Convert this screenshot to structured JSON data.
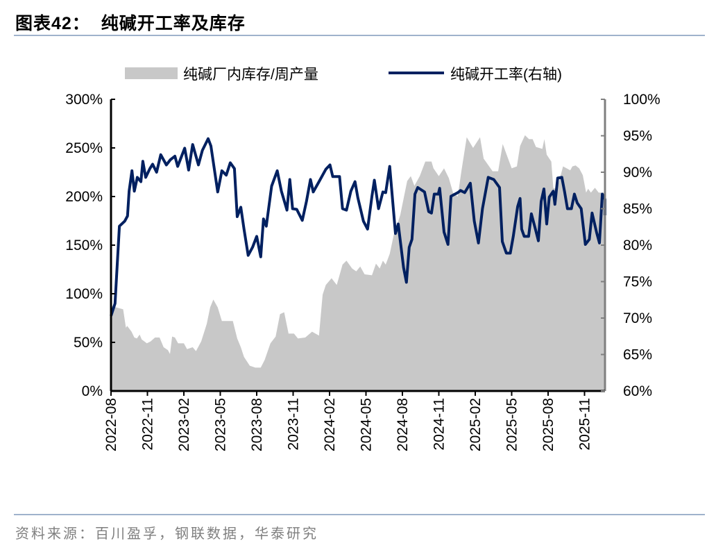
{
  "title": "图表42：  纯碱开工率及库存",
  "source": "资料来源：百川盈孚，钢联数据，华泰研究",
  "colors": {
    "inventory_fill": "#c8c8c8",
    "rate_line": "#002060",
    "rule": "#9fb2cc",
    "right_axis": "#7f7f7f"
  },
  "chart_data": {
    "type": "area+line",
    "title": "纯碱开工率及库存",
    "legend_position": "top",
    "grid": false,
    "x_ticks": [
      "2022-08",
      "2022-11",
      "2023-02",
      "2023-05",
      "2023-08",
      "2023-11",
      "2024-02",
      "2024-05",
      "2024-08",
      "2024-11",
      "2025-02",
      "2025-05",
      "2025-08",
      "2025-11"
    ],
    "y_left": {
      "ticks": [
        "0%",
        "50%",
        "100%",
        "150%",
        "200%",
        "250%",
        "300%"
      ],
      "range": [
        0,
        300
      ],
      "unit": "%"
    },
    "y_right": {
      "ticks": [
        "60%",
        "65%",
        "70%",
        "75%",
        "80%",
        "85%",
        "90%",
        "95%",
        "100%"
      ],
      "range": [
        60,
        100
      ],
      "unit": "%"
    },
    "series": [
      {
        "name": "纯碱厂内库存/周产量",
        "type": "area",
        "axis": "left",
        "points": [
          [
            "2022-08-01",
            88
          ],
          [
            "2022-08-14",
            86
          ],
          [
            "2022-09-01",
            84
          ],
          [
            "2022-09-08",
            65
          ],
          [
            "2022-09-11",
            67
          ],
          [
            "2022-09-22",
            61
          ],
          [
            "2022-09-29",
            55
          ],
          [
            "2022-10-05",
            54
          ],
          [
            "2022-10-12",
            58
          ],
          [
            "2022-10-17",
            53
          ],
          [
            "2022-10-30",
            49
          ],
          [
            "2022-11-09",
            51
          ],
          [
            "2022-11-20",
            55
          ],
          [
            "2022-12-01",
            55
          ],
          [
            "2022-12-11",
            45
          ],
          [
            "2022-12-22",
            42
          ],
          [
            "2022-12-27",
            38
          ],
          [
            "2023-01-02",
            56
          ],
          [
            "2023-01-09",
            55
          ],
          [
            "2023-01-17",
            49
          ],
          [
            "2023-02-01",
            49
          ],
          [
            "2023-02-09",
            43
          ],
          [
            "2023-02-23",
            45
          ],
          [
            "2023-03-01",
            41
          ],
          [
            "2023-03-14",
            51
          ],
          [
            "2023-03-28",
            69
          ],
          [
            "2023-04-06",
            86
          ],
          [
            "2023-04-14",
            94
          ],
          [
            "2023-04-25",
            86
          ],
          [
            "2023-05-05",
            72
          ],
          [
            "2023-06-02",
            72
          ],
          [
            "2023-06-13",
            54
          ],
          [
            "2023-06-22",
            45
          ],
          [
            "2023-06-30",
            35
          ],
          [
            "2023-07-14",
            26
          ],
          [
            "2023-07-28",
            24
          ],
          [
            "2023-08-11",
            24
          ],
          [
            "2023-08-21",
            32
          ],
          [
            "2023-09-05",
            49
          ],
          [
            "2023-09-18",
            56
          ],
          [
            "2023-09-29",
            79
          ],
          [
            "2023-10-09",
            81
          ],
          [
            "2023-10-20",
            59
          ],
          [
            "2023-11-03",
            59
          ],
          [
            "2023-11-13",
            54
          ],
          [
            "2023-12-01",
            55
          ],
          [
            "2023-12-18",
            61
          ],
          [
            "2024-01-05",
            57
          ],
          [
            "2024-01-14",
            99
          ],
          [
            "2024-01-22",
            109
          ],
          [
            "2024-02-06",
            116
          ],
          [
            "2024-02-19",
            109
          ],
          [
            "2024-03-03",
            130
          ],
          [
            "2024-03-13",
            134
          ],
          [
            "2024-03-27",
            126
          ],
          [
            "2024-04-07",
            123
          ],
          [
            "2024-04-17",
            128
          ],
          [
            "2024-04-28",
            120
          ],
          [
            "2024-05-16",
            119
          ],
          [
            "2024-05-26",
            131
          ],
          [
            "2024-06-05",
            126
          ],
          [
            "2024-06-13",
            134
          ],
          [
            "2024-06-20",
            130
          ],
          [
            "2024-06-30",
            141
          ],
          [
            "2024-07-10",
            161
          ],
          [
            "2024-07-26",
            181
          ],
          [
            "2024-08-13",
            216
          ],
          [
            "2024-08-22",
            221
          ],
          [
            "2024-08-31",
            211
          ],
          [
            "2024-09-14",
            221
          ],
          [
            "2024-09-28",
            236
          ],
          [
            "2024-10-13",
            236
          ],
          [
            "2024-10-18",
            229
          ],
          [
            "2024-11-01",
            221
          ],
          [
            "2024-11-14",
            229
          ],
          [
            "2024-11-26",
            219
          ],
          [
            "2024-12-06",
            204
          ],
          [
            "2024-12-18",
            200
          ],
          [
            "2024-12-27",
            226
          ],
          [
            "2025-01-10",
            261
          ],
          [
            "2025-01-26",
            250
          ],
          [
            "2025-02-13",
            261
          ],
          [
            "2025-02-22",
            239
          ],
          [
            "2025-03-14",
            226
          ],
          [
            "2025-03-28",
            226
          ],
          [
            "2025-04-09",
            254
          ],
          [
            "2025-05-01",
            229
          ],
          [
            "2025-05-14",
            231
          ],
          [
            "2025-05-22",
            252
          ],
          [
            "2025-06-04",
            263
          ],
          [
            "2025-06-14",
            259
          ],
          [
            "2025-06-23",
            259
          ],
          [
            "2025-07-01",
            251
          ],
          [
            "2025-07-17",
            249
          ],
          [
            "2025-07-22",
            259
          ],
          [
            "2025-07-28",
            243
          ],
          [
            "2025-08-09",
            236
          ],
          [
            "2025-08-14",
            209
          ],
          [
            "2025-08-23",
            207
          ],
          [
            "2025-09-08",
            231
          ],
          [
            "2025-09-17",
            229
          ],
          [
            "2025-09-26",
            227
          ],
          [
            "2025-10-01",
            231
          ],
          [
            "2025-10-09",
            232
          ],
          [
            "2025-10-18",
            229
          ],
          [
            "2025-10-27",
            222
          ],
          [
            "2025-11-05",
            204
          ],
          [
            "2025-11-10",
            208
          ],
          [
            "2025-11-17",
            204
          ],
          [
            "2025-11-27",
            209
          ],
          [
            "2025-12-06",
            204
          ],
          [
            "2025-12-18",
            204
          ],
          [
            "2025-12-25",
            204
          ]
        ]
      },
      {
        "name": "纯碱开工率(右轴)",
        "type": "line",
        "axis": "right",
        "points": [
          [
            "2022-08-01",
            70.3
          ],
          [
            "2022-08-11",
            72
          ],
          [
            "2022-08-22",
            82.6
          ],
          [
            "2022-09-05",
            83.3
          ],
          [
            "2022-09-12",
            84
          ],
          [
            "2022-09-16",
            87.4
          ],
          [
            "2022-09-23",
            90.2
          ],
          [
            "2022-09-29",
            87.4
          ],
          [
            "2022-10-06",
            89.3
          ],
          [
            "2022-10-15",
            88.7
          ],
          [
            "2022-10-20",
            91.5
          ],
          [
            "2022-10-27",
            89.3
          ],
          [
            "2022-11-07",
            90.5
          ],
          [
            "2022-11-14",
            91.1
          ],
          [
            "2022-11-24",
            90
          ],
          [
            "2022-12-04",
            92.4
          ],
          [
            "2022-12-18",
            91
          ],
          [
            "2022-12-28",
            91.7
          ],
          [
            "2023-01-09",
            92.2
          ],
          [
            "2023-01-16",
            90.8
          ],
          [
            "2023-02-03",
            93.3
          ],
          [
            "2023-02-13",
            90.3
          ],
          [
            "2023-02-23",
            93.8
          ],
          [
            "2023-03-07",
            91
          ],
          [
            "2023-03-17",
            93
          ],
          [
            "2023-04-01",
            94.6
          ],
          [
            "2023-04-08",
            93.6
          ],
          [
            "2023-04-25",
            87.3
          ],
          [
            "2023-05-05",
            90.2
          ],
          [
            "2023-05-16",
            89.6
          ],
          [
            "2023-05-26",
            91.3
          ],
          [
            "2023-06-06",
            90.5
          ],
          [
            "2023-06-13",
            83.9
          ],
          [
            "2023-06-22",
            85.2
          ],
          [
            "2023-06-30",
            82.2
          ],
          [
            "2023-07-10",
            78.6
          ],
          [
            "2023-07-21",
            79.7
          ],
          [
            "2023-08-01",
            81.2
          ],
          [
            "2023-08-11",
            78.4
          ],
          [
            "2023-08-18",
            83.6
          ],
          [
            "2023-08-25",
            82.6
          ],
          [
            "2023-09-08",
            88.1
          ],
          [
            "2023-09-22",
            90.2
          ],
          [
            "2023-10-02",
            87.4
          ],
          [
            "2023-10-16",
            84.8
          ],
          [
            "2023-10-23",
            89
          ],
          [
            "2023-10-30",
            85
          ],
          [
            "2023-11-10",
            84.9
          ],
          [
            "2023-11-24",
            83.4
          ],
          [
            "2023-12-04",
            86
          ],
          [
            "2023-12-14",
            89
          ],
          [
            "2023-12-21",
            87.3
          ],
          [
            "2024-01-05",
            88.7
          ],
          [
            "2024-01-22",
            90.4
          ],
          [
            "2024-02-02",
            91
          ],
          [
            "2024-02-09",
            89.4
          ],
          [
            "2024-02-26",
            89.4
          ],
          [
            "2024-03-03",
            85
          ],
          [
            "2024-03-13",
            84.8
          ],
          [
            "2024-03-24",
            87.4
          ],
          [
            "2024-04-04",
            88.7
          ],
          [
            "2024-04-11",
            86.5
          ],
          [
            "2024-04-25",
            83.3
          ],
          [
            "2024-05-05",
            82.2
          ],
          [
            "2024-05-16",
            86.7
          ],
          [
            "2024-05-22",
            88.9
          ],
          [
            "2024-06-02",
            85
          ],
          [
            "2024-06-13",
            87.3
          ],
          [
            "2024-06-20",
            87.2
          ],
          [
            "2024-06-30",
            90.8
          ],
          [
            "2024-07-14",
            81.6
          ],
          [
            "2024-07-21",
            82.9
          ],
          [
            "2024-08-04",
            76.9
          ],
          [
            "2024-08-11",
            74.9
          ],
          [
            "2024-08-18",
            79.7
          ],
          [
            "2024-08-25",
            80.8
          ],
          [
            "2024-09-02",
            87
          ],
          [
            "2024-09-09",
            87.9
          ],
          [
            "2024-09-26",
            87.3
          ],
          [
            "2024-10-06",
            84.6
          ],
          [
            "2024-10-13",
            84.4
          ],
          [
            "2024-10-20",
            87
          ],
          [
            "2024-10-30",
            87
          ],
          [
            "2024-11-03",
            87.8
          ],
          [
            "2024-11-14",
            81.8
          ],
          [
            "2024-11-24",
            80.1
          ],
          [
            "2024-12-01",
            86.7
          ],
          [
            "2024-12-18",
            87.2
          ],
          [
            "2024-12-25",
            87.5
          ],
          [
            "2025-01-05",
            87.2
          ],
          [
            "2025-01-19",
            88.5
          ],
          [
            "2025-01-29",
            83.3
          ],
          [
            "2025-02-09",
            80.3
          ],
          [
            "2025-02-19",
            85
          ],
          [
            "2025-03-03",
            89.3
          ],
          [
            "2025-03-17",
            89
          ],
          [
            "2025-04-01",
            87.9
          ],
          [
            "2025-04-08",
            80.5
          ],
          [
            "2025-04-18",
            78.9
          ],
          [
            "2025-04-28",
            78.9
          ],
          [
            "2025-05-05",
            81.2
          ],
          [
            "2025-05-16",
            85.3
          ],
          [
            "2025-05-22",
            86.4
          ],
          [
            "2025-05-26",
            82.2
          ],
          [
            "2025-06-02",
            81.2
          ],
          [
            "2025-06-13",
            81.2
          ],
          [
            "2025-06-20",
            84.3
          ],
          [
            "2025-06-30",
            82.2
          ],
          [
            "2025-07-07",
            80.6
          ],
          [
            "2025-07-14",
            86
          ],
          [
            "2025-07-21",
            87.7
          ],
          [
            "2025-07-28",
            82.9
          ],
          [
            "2025-08-04",
            86.6
          ],
          [
            "2025-08-14",
            87.4
          ],
          [
            "2025-08-18",
            85.6
          ],
          [
            "2025-08-25",
            89.2
          ],
          [
            "2025-09-05",
            89.3
          ],
          [
            "2025-09-12",
            87.3
          ],
          [
            "2025-09-19",
            85
          ],
          [
            "2025-09-29",
            85
          ],
          [
            "2025-10-06",
            87
          ],
          [
            "2025-10-13",
            85.8
          ],
          [
            "2025-10-23",
            85
          ],
          [
            "2025-11-03",
            80.1
          ],
          [
            "2025-11-13",
            80.8
          ],
          [
            "2025-11-20",
            84.4
          ],
          [
            "2025-12-01",
            81.7
          ],
          [
            "2025-12-08",
            80.3
          ],
          [
            "2025-12-15",
            87
          ],
          [
            "2025-12-22",
            86.3
          ],
          [
            "2025-12-25",
            84.1
          ]
        ]
      }
    ]
  }
}
